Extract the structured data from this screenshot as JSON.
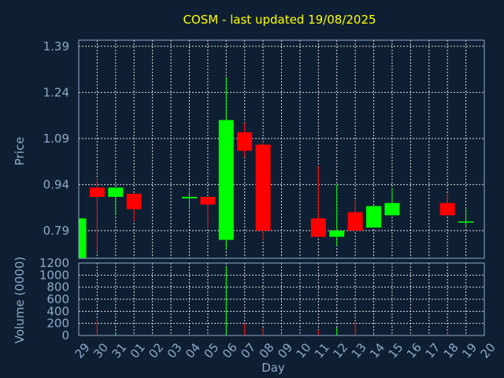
{
  "chart_data": {
    "type": "candlestick",
    "title": "COSM - last updated 19/08/2025",
    "xlabel": "Day",
    "ylabel_price": "Price",
    "ylabel_volume": "Volume (0000)",
    "x_ticks": [
      "29",
      "30",
      "31",
      "01",
      "02",
      "03",
      "04",
      "05",
      "06",
      "07",
      "08",
      "09",
      "10",
      "11",
      "12",
      "13",
      "14",
      "15",
      "16",
      "17",
      "18",
      "19",
      "20"
    ],
    "price_ticks": [
      "0.79",
      "0.94",
      "1.09",
      "1.24",
      "1.39"
    ],
    "price_ylim": [
      0.7,
      1.41
    ],
    "volume_ticks": [
      "0",
      "200",
      "400",
      "600",
      "800",
      "1000",
      "1200"
    ],
    "volume_ylim": [
      0,
      1200
    ],
    "up_color": "#00ff00",
    "down_color": "#ff0000",
    "candles": [
      {
        "day": "29",
        "open": 0.7,
        "high": 0.83,
        "low": 0.7,
        "close": 0.83,
        "volume": 0
      },
      {
        "day": "30",
        "open": 0.93,
        "high": 0.96,
        "low": 0.72,
        "close": 0.9,
        "volume": 270
      },
      {
        "day": "31",
        "open": 0.9,
        "high": 0.93,
        "low": 0.84,
        "close": 0.93,
        "volume": 40
      },
      {
        "day": "01",
        "open": 0.91,
        "high": 0.91,
        "low": 0.82,
        "close": 0.86,
        "volume": 0
      },
      {
        "day": "04",
        "open": 0.895,
        "high": 0.92,
        "low": 0.86,
        "close": 0.9,
        "volume": 0
      },
      {
        "day": "05",
        "open": 0.9,
        "high": 0.9,
        "low": 0.8,
        "close": 0.875,
        "volume": 0
      },
      {
        "day": "06",
        "open": 0.76,
        "high": 1.29,
        "low": 0.73,
        "close": 1.15,
        "volume": 1150
      },
      {
        "day": "07",
        "open": 1.11,
        "high": 1.14,
        "low": 1.03,
        "close": 1.05,
        "volume": 200
      },
      {
        "day": "08",
        "open": 1.07,
        "high": 1.08,
        "low": 0.76,
        "close": 0.79,
        "volume": 130
      },
      {
        "day": "11",
        "open": 0.83,
        "high": 1.0,
        "low": 0.77,
        "close": 0.77,
        "volume": 90
      },
      {
        "day": "12",
        "open": 0.77,
        "high": 0.94,
        "low": 0.74,
        "close": 0.79,
        "volume": 130
      },
      {
        "day": "13",
        "open": 0.85,
        "high": 0.89,
        "low": 0.79,
        "close": 0.79,
        "volume": 220
      },
      {
        "day": "14",
        "open": 0.8,
        "high": 0.87,
        "low": 0.8,
        "close": 0.87,
        "volume": 40
      },
      {
        "day": "15",
        "open": 0.84,
        "high": 0.93,
        "low": 0.84,
        "close": 0.88,
        "volume": 0
      },
      {
        "day": "18",
        "open": 0.88,
        "high": 0.91,
        "low": 0.84,
        "close": 0.84,
        "volume": 40
      },
      {
        "day": "19",
        "open": 0.82,
        "high": 0.86,
        "low": 0.8,
        "close": 0.82,
        "volume": 0
      }
    ]
  }
}
